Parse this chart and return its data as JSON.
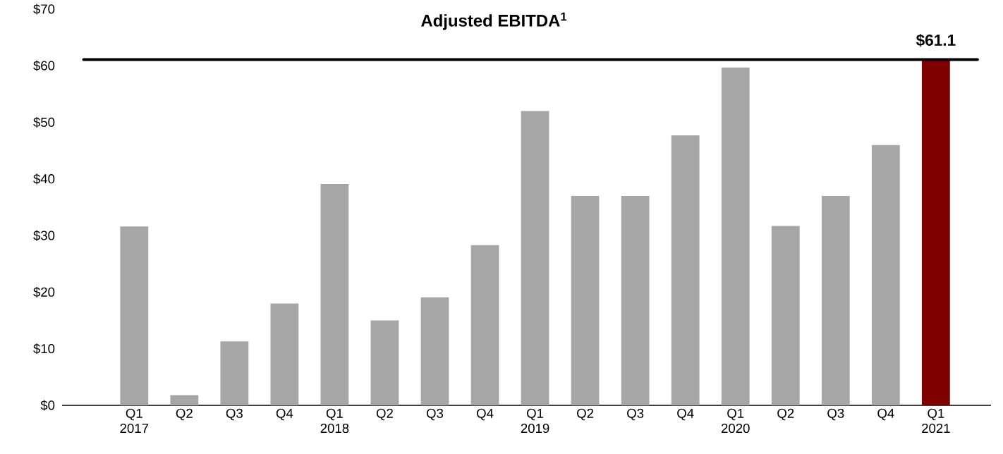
{
  "chart_data": {
    "type": "bar",
    "title": "Adjusted EBITDA$^{1}$",
    "categories": [
      "Q1 2017",
      "Q2",
      "Q3",
      "Q4",
      "Q1 2018",
      "Q2",
      "Q3",
      "Q4",
      "Q1 2019",
      "Q2",
      "Q3",
      "Q4",
      "Q1 2020",
      "Q2",
      "Q3",
      "Q4",
      "Q1 2021"
    ],
    "values": [
      31.6,
      1.8,
      11.3,
      18.0,
      39.1,
      15.0,
      19.1,
      28.3,
      52.0,
      37.0,
      37.0,
      47.7,
      59.7,
      31.7,
      37.0,
      46.0,
      61.1
    ],
    "colors": [
      "#a6a6a6",
      "#a6a6a6",
      "#a6a6a6",
      "#a6a6a6",
      "#a6a6a6",
      "#a6a6a6",
      "#a6a6a6",
      "#a6a6a6",
      "#a6a6a6",
      "#a6a6a6",
      "#a6a6a6",
      "#a6a6a6",
      "#a6a6a6",
      "#a6a6a6",
      "#a6a6a6",
      "#a6a6a6",
      "#800000"
    ],
    "value_labels": [
      null,
      null,
      null,
      null,
      null,
      null,
      null,
      null,
      null,
      null,
      null,
      null,
      null,
      null,
      null,
      null,
      "$61.1"
    ],
    "ref_lines": [
      {
        "axis": "y",
        "value": 61.1,
        "color": "#000000"
      }
    ],
    "ylim": [
      0,
      70
    ],
    "yticks": [
      {
        "value": 0,
        "label": "$0"
      },
      {
        "value": 10,
        "label": "$10"
      },
      {
        "value": 20,
        "label": "$20"
      },
      {
        "value": 30,
        "label": "$30"
      },
      {
        "value": 40,
        "label": "$40"
      },
      {
        "value": 50,
        "label": "$50"
      },
      {
        "value": 60,
        "label": "$60"
      },
      {
        "value": 70,
        "label": "$70"
      }
    ]
  }
}
